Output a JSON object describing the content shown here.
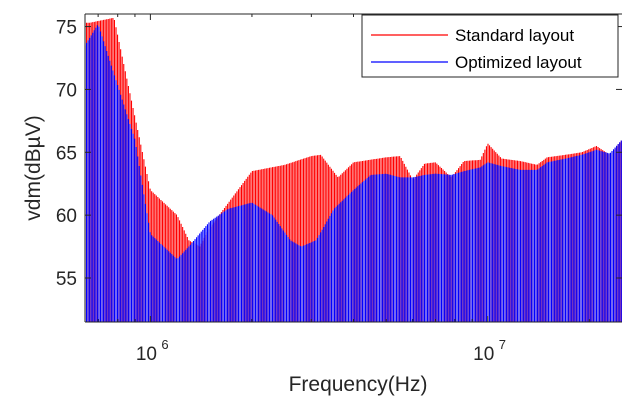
{
  "chart_data": {
    "type": "line",
    "title": "",
    "xlabel": "Frequency(Hz)",
    "ylabel": "vdm(dBµV)",
    "x_scale": "log",
    "xlim": [
      640000,
      25000000
    ],
    "ylim": [
      51.5,
      76
    ],
    "x_ticks": [
      {
        "value": 1000000,
        "base": "10",
        "exp": "6"
      },
      {
        "value": 10000000,
        "base": "10",
        "exp": "7"
      }
    ],
    "y_ticks": [
      55,
      60,
      65,
      70,
      75
    ],
    "grid": false,
    "legend_position": "top-right",
    "series": [
      {
        "name": "Standard layout",
        "color": "#ff0000",
        "x": [
          660000,
          780000,
          1000000,
          1200000,
          1300000,
          1400000,
          1500000,
          2000000,
          2500000,
          3000000,
          3200000,
          3600000,
          4000000,
          5000000,
          5500000,
          6000000,
          6500000,
          7000000,
          7800000,
          8500000,
          9500000,
          10000000,
          11000000,
          12500000,
          14000000,
          15000000,
          17000000,
          19000000,
          21000000,
          23000000,
          25000000
        ],
        "env_hi": [
          75.3,
          75.7,
          62.0,
          60.0,
          58.0,
          57.5,
          59.0,
          63.5,
          64.0,
          64.7,
          64.8,
          63.0,
          64.2,
          64.6,
          64.7,
          62.8,
          64.1,
          64.2,
          63.0,
          64.3,
          64.4,
          65.7,
          64.5,
          64.3,
          64.0,
          64.6,
          64.8,
          65.0,
          65.5,
          64.8,
          66.0
        ],
        "env_lo": [
          51.5,
          51.5,
          51.5,
          51.5,
          51.5,
          51.5,
          51.5,
          51.5,
          51.5,
          51.5,
          51.5,
          51.5,
          51.5,
          51.5,
          51.5,
          51.5,
          51.5,
          51.5,
          51.5,
          51.5,
          51.5,
          51.5,
          51.5,
          51.5,
          51.5,
          51.5,
          51.5,
          51.5,
          51.5,
          51.5,
          51.5
        ]
      },
      {
        "name": "Optimized layout",
        "color": "#0000ff",
        "x": [
          640000,
          700000,
          900000,
          1000000,
          1200000,
          1300000,
          1500000,
          1700000,
          2000000,
          2300000,
          2600000,
          2800000,
          3100000,
          3500000,
          4000000,
          4500000,
          5000000,
          5500000,
          6000000,
          6500000,
          7000000,
          7800000,
          8500000,
          9500000,
          10000000,
          11000000,
          12500000,
          14000000,
          15000000,
          17000000,
          19000000,
          21000000,
          23000000,
          25000000
        ],
        "env_hi": [
          73.5,
          75.2,
          66.0,
          58.5,
          56.5,
          57.5,
          59.5,
          60.5,
          61.0,
          60.0,
          58.0,
          57.5,
          58.0,
          60.5,
          62.0,
          63.2,
          63.3,
          63.0,
          63.0,
          63.2,
          63.3,
          63.2,
          63.5,
          63.8,
          64.2,
          63.9,
          63.6,
          63.6,
          64.2,
          64.5,
          64.8,
          65.2,
          64.9,
          66.0
        ],
        "env_lo": [
          51.5,
          51.5,
          51.5,
          51.5,
          51.5,
          51.5,
          51.5,
          51.5,
          51.5,
          51.5,
          51.5,
          51.5,
          51.5,
          51.5,
          51.5,
          51.5,
          51.5,
          51.5,
          51.5,
          51.5,
          51.5,
          51.5,
          51.5,
          51.5,
          51.5,
          51.5,
          51.5,
          51.5,
          51.5,
          51.5,
          51.5,
          51.5,
          51.5,
          51.5
        ]
      }
    ]
  }
}
